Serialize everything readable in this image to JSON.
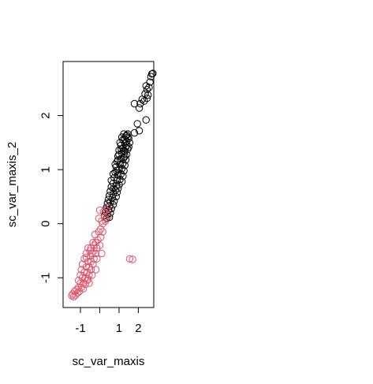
{
  "chart_data": {
    "type": "scatter",
    "title": "",
    "xlabel": "sc_var_maxis",
    "ylabel": "sc_var_maxis_2",
    "xlim": [
      -1.9,
      2.8
    ],
    "ylim": [
      -1.55,
      3.0
    ],
    "x_ticks": [
      -1,
      0,
      1,
      2
    ],
    "x_tick_labels": [
      "-1",
      "",
      "1",
      "2"
    ],
    "y_ticks": [
      -1,
      0,
      1,
      2
    ],
    "y_tick_labels": [
      "-1",
      "0",
      "1",
      "2"
    ],
    "grid": false,
    "legend": "none",
    "marker": "open-circle",
    "colors": {
      "group_1": "#000000",
      "group_2": "#DF536B"
    },
    "series": [
      {
        "color": "#000000",
        "points": [
          [
            2.7,
            2.77
          ],
          [
            2.75,
            2.78
          ],
          [
            2.65,
            2.72
          ],
          [
            2.6,
            2.62
          ],
          [
            2.55,
            2.52
          ],
          [
            2.45,
            2.48
          ],
          [
            2.5,
            2.38
          ],
          [
            2.45,
            2.32
          ],
          [
            2.35,
            2.4
          ],
          [
            2.3,
            2.27
          ],
          [
            2.4,
            2.55
          ],
          [
            2.2,
            2.3
          ],
          [
            2.1,
            2.22
          ],
          [
            2.05,
            2.14
          ],
          [
            1.8,
            2.22
          ],
          [
            2.4,
            1.92
          ],
          [
            1.95,
            1.85
          ],
          [
            2.05,
            1.72
          ],
          [
            1.8,
            1.68
          ],
          [
            1.25,
            1.66
          ],
          [
            1.45,
            1.66
          ],
          [
            1.35,
            1.62
          ],
          [
            1.15,
            1.6
          ],
          [
            1.5,
            1.58
          ],
          [
            1.2,
            1.55
          ],
          [
            1.4,
            1.52
          ],
          [
            1.05,
            1.5
          ],
          [
            1.3,
            1.48
          ],
          [
            1.55,
            1.5
          ],
          [
            1.1,
            1.45
          ],
          [
            1.35,
            1.42
          ],
          [
            1.2,
            1.4
          ],
          [
            1.45,
            1.38
          ],
          [
            1.0,
            1.36
          ],
          [
            1.3,
            1.33
          ],
          [
            1.15,
            1.3
          ],
          [
            1.4,
            1.28
          ],
          [
            0.95,
            1.25
          ],
          [
            1.25,
            1.22
          ],
          [
            1.1,
            1.2
          ],
          [
            1.35,
            1.18
          ],
          [
            0.9,
            1.15
          ],
          [
            1.2,
            1.12
          ],
          [
            1.05,
            1.1
          ],
          [
            1.3,
            1.08
          ],
          [
            0.85,
            1.05
          ],
          [
            1.15,
            1.02
          ],
          [
            1.0,
            1.0
          ],
          [
            1.25,
            0.98
          ],
          [
            0.8,
            0.95
          ],
          [
            1.1,
            0.92
          ],
          [
            0.95,
            0.9
          ],
          [
            1.2,
            0.88
          ],
          [
            0.75,
            0.85
          ],
          [
            1.05,
            0.82
          ],
          [
            0.9,
            0.8
          ],
          [
            1.15,
            0.78
          ],
          [
            0.7,
            0.75
          ],
          [
            1.0,
            0.72
          ],
          [
            0.85,
            0.7
          ],
          [
            0.6,
            0.68
          ],
          [
            0.95,
            0.65
          ],
          [
            0.8,
            0.62
          ],
          [
            0.55,
            0.6
          ],
          [
            0.9,
            0.58
          ],
          [
            0.7,
            0.55
          ],
          [
            0.5,
            0.52
          ],
          [
            0.85,
            0.5
          ],
          [
            0.65,
            0.48
          ],
          [
            0.45,
            0.45
          ],
          [
            0.75,
            0.42
          ],
          [
            0.55,
            0.4
          ],
          [
            0.4,
            0.38
          ],
          [
            0.7,
            0.35
          ],
          [
            0.5,
            0.32
          ],
          [
            0.35,
            0.3
          ],
          [
            0.6,
            0.28
          ],
          [
            0.45,
            0.25
          ],
          [
            0.3,
            0.22
          ],
          [
            0.55,
            0.2
          ],
          [
            0.4,
            0.18
          ],
          [
            0.25,
            0.15
          ],
          [
            0.5,
            0.12
          ],
          [
            0.35,
            0.1
          ],
          [
            1.4,
            1.64
          ],
          [
            1.3,
            1.56
          ],
          [
            1.25,
            1.35
          ],
          [
            1.4,
            1.45
          ],
          [
            1.5,
            1.42
          ],
          [
            1.0,
            1.28
          ],
          [
            0.8,
            1.1
          ],
          [
            1.3,
            1.25
          ],
          [
            0.7,
            0.92
          ],
          [
            0.6,
            0.8
          ],
          [
            1.45,
            1.6
          ],
          [
            1.12,
            1.38
          ],
          [
            0.95,
            1.18
          ],
          [
            0.88,
            0.98
          ],
          [
            0.72,
            0.65
          ]
        ]
      },
      {
        "color": "#DF536B",
        "points": [
          [
            0.35,
            0.25
          ],
          [
            0.2,
            0.22
          ],
          [
            0.0,
            0.25
          ],
          [
            0.45,
            0.15
          ],
          [
            0.3,
            0.05
          ],
          [
            0.1,
            0.05
          ],
          [
            0.15,
            0.0
          ],
          [
            0.05,
            -0.1
          ],
          [
            -0.05,
            -0.15
          ],
          [
            0.05,
            -0.25
          ],
          [
            -0.1,
            -0.3
          ],
          [
            0.0,
            -0.4
          ],
          [
            -0.2,
            -0.35
          ],
          [
            -0.15,
            -0.45
          ],
          [
            -0.3,
            -0.5
          ],
          [
            -0.2,
            -0.55
          ],
          [
            -0.4,
            -0.55
          ],
          [
            -0.3,
            -0.65
          ],
          [
            -0.5,
            -0.6
          ],
          [
            -0.45,
            -0.7
          ],
          [
            -0.35,
            -0.75
          ],
          [
            -0.6,
            -0.7
          ],
          [
            -0.55,
            -0.8
          ],
          [
            -0.45,
            -0.85
          ],
          [
            -0.7,
            -0.8
          ],
          [
            -0.65,
            -0.9
          ],
          [
            -0.55,
            -0.95
          ],
          [
            -0.8,
            -0.9
          ],
          [
            -0.75,
            -1.0
          ],
          [
            -0.65,
            -1.05
          ],
          [
            -0.9,
            -1.0
          ],
          [
            -0.85,
            -1.1
          ],
          [
            -0.75,
            -1.12
          ],
          [
            -1.0,
            -1.1
          ],
          [
            -0.95,
            -1.18
          ],
          [
            -0.85,
            -1.2
          ],
          [
            -1.1,
            -1.18
          ],
          [
            -1.05,
            -1.25
          ],
          [
            -1.2,
            -1.22
          ],
          [
            -1.15,
            -1.28
          ],
          [
            -1.3,
            -1.25
          ],
          [
            -1.25,
            -1.32
          ],
          [
            -1.4,
            -1.3
          ],
          [
            -1.45,
            -1.33
          ],
          [
            -1.35,
            -1.35
          ],
          [
            -0.2,
            -0.85
          ],
          [
            -0.5,
            -0.5
          ],
          [
            -0.7,
            -0.55
          ],
          [
            -0.9,
            -0.75
          ],
          [
            -0.3,
            -0.4
          ],
          [
            -0.6,
            -1.02
          ],
          [
            -1.0,
            -0.95
          ],
          [
            -0.4,
            -0.95
          ],
          [
            0.1,
            -0.55
          ],
          [
            -0.15,
            -0.65
          ],
          [
            -0.8,
            -0.65
          ],
          [
            -0.95,
            -0.85
          ],
          [
            -1.1,
            -1.05
          ],
          [
            -0.6,
            -0.45
          ],
          [
            -0.35,
            -0.35
          ],
          [
            1.55,
            -0.65
          ],
          [
            1.7,
            -0.66
          ],
          [
            0.25,
            0.12
          ],
          [
            0.4,
            0.3
          ],
          [
            -0.05,
            0.1
          ],
          [
            0.15,
            -0.15
          ],
          [
            -0.25,
            -0.2
          ],
          [
            -0.45,
            -0.45
          ],
          [
            -0.7,
            -0.62
          ],
          [
            -0.55,
            -1.1
          ]
        ]
      }
    ]
  }
}
